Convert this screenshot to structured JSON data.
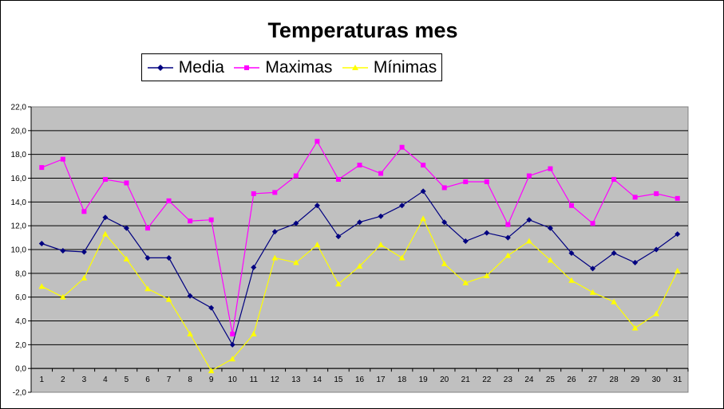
{
  "chart_data": {
    "type": "line",
    "title": "Temperaturas mes",
    "xlabel": "",
    "ylabel": "",
    "categories": [
      "1",
      "2",
      "3",
      "4",
      "5",
      "6",
      "7",
      "8",
      "9",
      "10",
      "11",
      "12",
      "13",
      "14",
      "15",
      "16",
      "17",
      "18",
      "19",
      "20",
      "21",
      "22",
      "23",
      "24",
      "25",
      "26",
      "27",
      "28",
      "29",
      "30",
      "31"
    ],
    "ylim": [
      -2,
      22
    ],
    "yticks": [
      "-2,0",
      "0,0",
      "2,0",
      "4,0",
      "6,0",
      "8,0",
      "10,0",
      "12,0",
      "14,0",
      "16,0",
      "18,0",
      "20,0",
      "22,0"
    ],
    "grid": true,
    "legend": "top",
    "plot_background": "#c0c0c0",
    "series": [
      {
        "name": "Media",
        "color": "#000080",
        "marker": "diamond",
        "values": [
          10.5,
          9.9,
          9.8,
          12.7,
          11.8,
          9.3,
          9.3,
          6.1,
          5.1,
          2.0,
          8.5,
          11.5,
          12.2,
          13.7,
          11.1,
          12.3,
          12.8,
          13.7,
          14.9,
          12.3,
          10.7,
          11.4,
          11.0,
          12.5,
          11.8,
          9.7,
          8.4,
          9.7,
          8.9,
          10.0,
          11.3
        ]
      },
      {
        "name": "Maximas",
        "color": "#ff00ff",
        "marker": "square",
        "values": [
          16.9,
          17.6,
          13.2,
          15.9,
          15.6,
          11.8,
          14.1,
          12.4,
          12.5,
          2.9,
          14.7,
          14.8,
          16.2,
          19.1,
          15.9,
          17.1,
          16.4,
          18.6,
          17.1,
          15.2,
          15.7,
          15.7,
          12.1,
          16.2,
          16.8,
          13.7,
          12.2,
          15.9,
          14.4,
          14.7,
          14.3
        ]
      },
      {
        "name": "Mínimas",
        "color": "#ffff00",
        "marker": "triangle",
        "values": [
          6.9,
          6.0,
          7.6,
          11.3,
          9.2,
          6.7,
          5.8,
          2.9,
          -0.2,
          0.8,
          2.9,
          9.3,
          8.9,
          10.4,
          7.1,
          8.6,
          10.4,
          9.3,
          12.6,
          8.8,
          7.2,
          7.8,
          9.5,
          10.7,
          9.1,
          7.4,
          6.4,
          5.6,
          3.4,
          4.6,
          8.2
        ]
      }
    ]
  }
}
